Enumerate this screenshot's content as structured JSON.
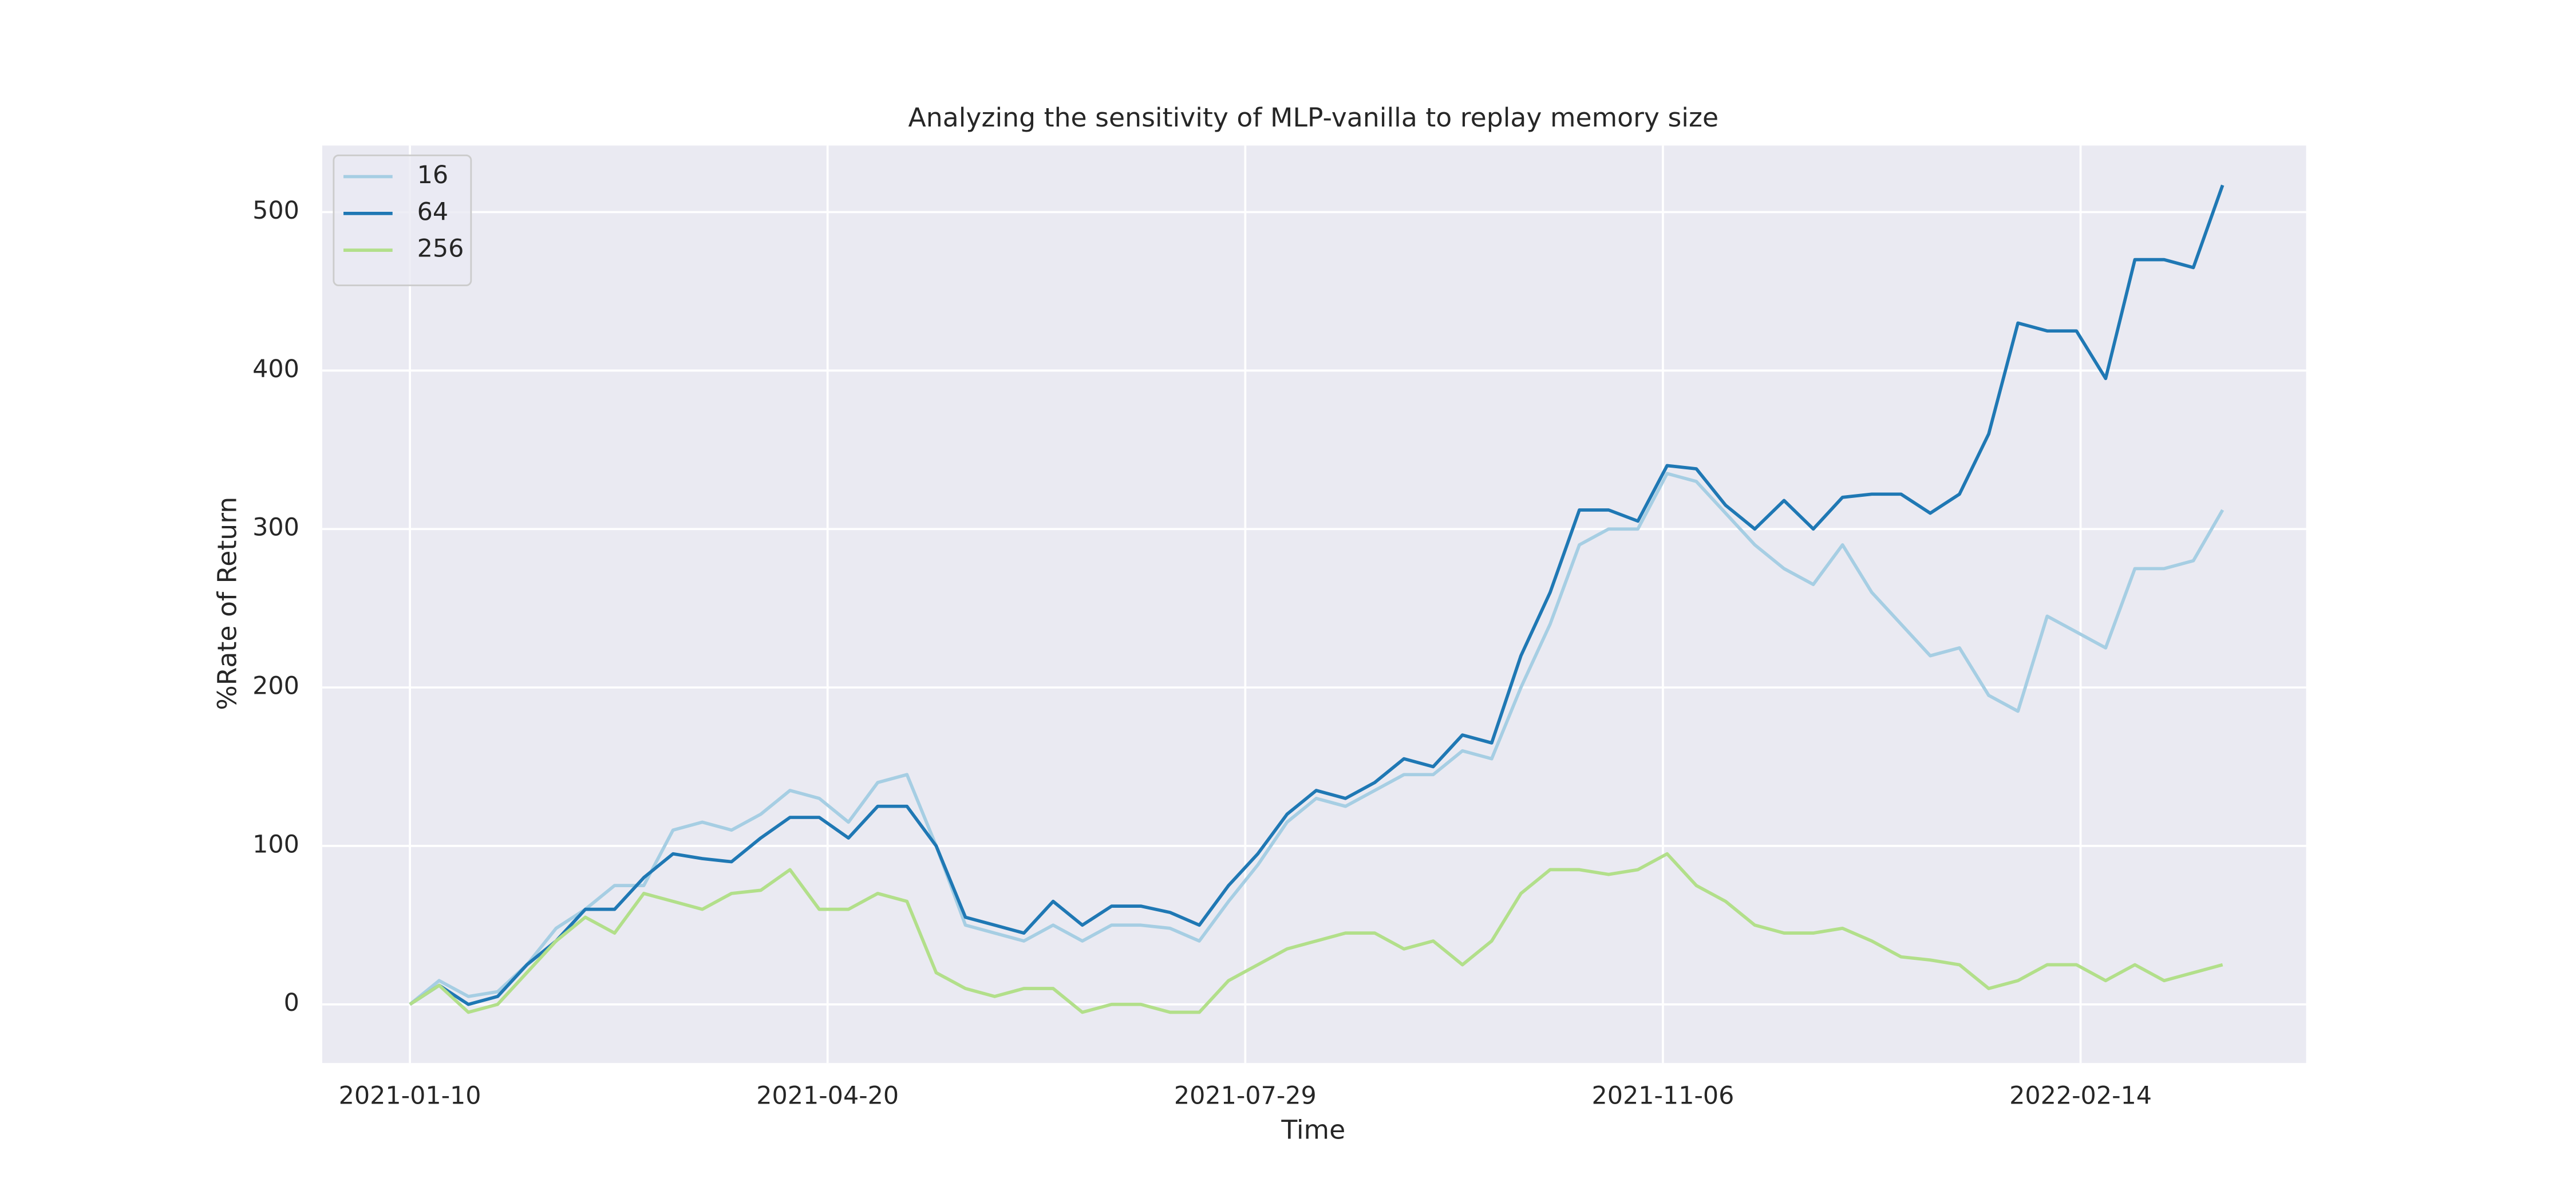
{
  "chart_data": {
    "type": "line",
    "title": "Analyzing the sensitivity of MLP-vanilla to replay memory size",
    "xlabel": "Time",
    "ylabel": "%Rate of Return",
    "x": [
      "2021-01-10",
      "2021-01-17",
      "2021-01-24",
      "2021-01-31",
      "2021-02-07",
      "2021-02-14",
      "2021-02-21",
      "2021-02-28",
      "2021-03-07",
      "2021-03-14",
      "2021-03-21",
      "2021-03-28",
      "2021-04-04",
      "2021-04-11",
      "2021-04-18",
      "2021-04-25",
      "2021-05-02",
      "2021-05-09",
      "2021-05-16",
      "2021-05-23",
      "2021-05-30",
      "2021-06-06",
      "2021-06-13",
      "2021-06-20",
      "2021-06-27",
      "2021-07-04",
      "2021-07-11",
      "2021-07-18",
      "2021-07-25",
      "2021-08-01",
      "2021-08-08",
      "2021-08-15",
      "2021-08-22",
      "2021-08-29",
      "2021-09-05",
      "2021-09-12",
      "2021-09-19",
      "2021-09-26",
      "2021-10-03",
      "2021-10-10",
      "2021-10-17",
      "2021-10-24",
      "2021-10-31",
      "2021-11-07",
      "2021-11-14",
      "2021-11-21",
      "2021-11-28",
      "2021-12-05",
      "2021-12-12",
      "2021-12-19",
      "2021-12-26",
      "2022-01-02",
      "2022-01-09",
      "2022-01-16",
      "2022-01-23",
      "2022-01-30",
      "2022-02-06",
      "2022-02-13",
      "2022-02-20",
      "2022-02-27",
      "2022-03-06",
      "2022-03-13",
      "2022-03-20"
    ],
    "series": [
      {
        "name": "16",
        "color": "#a6cee3",
        "values": [
          0,
          15,
          5,
          8,
          25,
          48,
          60,
          75,
          75,
          110,
          115,
          110,
          120,
          135,
          130,
          115,
          140,
          145,
          100,
          50,
          45,
          40,
          50,
          40,
          50,
          50,
          48,
          40,
          65,
          88,
          115,
          130,
          125,
          135,
          145,
          145,
          160,
          155,
          200,
          240,
          290,
          300,
          300,
          335,
          330,
          310,
          290,
          275,
          265,
          290,
          260,
          240,
          220,
          225,
          195,
          185,
          245,
          235,
          225,
          275,
          275,
          280,
          312
        ]
      },
      {
        "name": "64",
        "color": "#1f78b4",
        "values": [
          0,
          12,
          0,
          5,
          25,
          40,
          60,
          60,
          80,
          95,
          92,
          90,
          105,
          118,
          118,
          105,
          125,
          125,
          100,
          55,
          50,
          45,
          65,
          50,
          62,
          62,
          58,
          50,
          75,
          95,
          120,
          135,
          130,
          140,
          155,
          150,
          170,
          165,
          220,
          260,
          312,
          312,
          305,
          340,
          338,
          315,
          300,
          318,
          300,
          320,
          322,
          322,
          310,
          322,
          360,
          430,
          425,
          425,
          395,
          470,
          470,
          465,
          517
        ]
      },
      {
        "name": "256",
        "color": "#b2df8a",
        "values": [
          0,
          12,
          -5,
          0,
          20,
          40,
          55,
          45,
          70,
          65,
          60,
          70,
          72,
          85,
          60,
          60,
          70,
          65,
          20,
          10,
          5,
          10,
          10,
          -5,
          0,
          0,
          -5,
          -5,
          15,
          25,
          35,
          40,
          45,
          45,
          35,
          40,
          25,
          40,
          70,
          85,
          85,
          82,
          85,
          95,
          75,
          65,
          50,
          45,
          45,
          48,
          40,
          30,
          28,
          25,
          10,
          15,
          25,
          25,
          15,
          25,
          15,
          20,
          25
        ]
      }
    ],
    "xlim": [
      "2020-12-20",
      "2022-04-09"
    ],
    "xticks": [
      "2021-01-10",
      "2021-04-20",
      "2021-07-29",
      "2021-11-06",
      "2022-02-14"
    ],
    "ylim": [
      -37,
      542
    ],
    "yticks": [
      0,
      100,
      200,
      300,
      400,
      500
    ],
    "grid": true,
    "legend": "upper left"
  }
}
